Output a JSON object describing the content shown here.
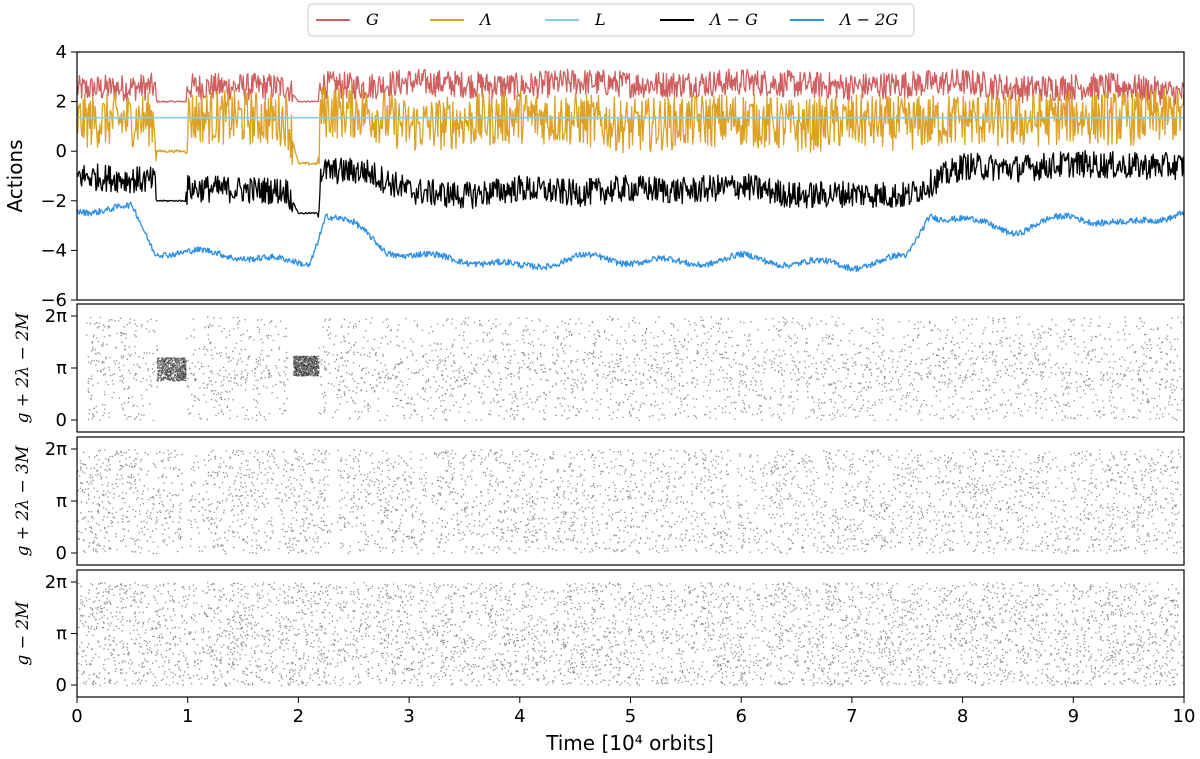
{
  "chart_data": [
    {
      "panel": "actions",
      "type": "line",
      "ylabel": "Actions",
      "xlim": [
        0,
        10
      ],
      "ylim": [
        -6,
        4
      ],
      "yticks": [
        "4",
        "2",
        "0",
        "−2",
        "−4",
        "−6"
      ],
      "legend_position": "top-center",
      "series": [
        {
          "name": "G",
          "color": "#d06060",
          "x": [
            0,
            0.7,
            0.72,
            0.98,
            1.0,
            1.9,
            2.0,
            2.18,
            2.2,
            2.6,
            3.0,
            3.5,
            4.0,
            4.5,
            5.0,
            5.5,
            6.0,
            6.5,
            7.0,
            7.5,
            8.0,
            8.5,
            9.0,
            9.5,
            10.0
          ],
          "y": [
            2.5,
            2.6,
            2.0,
            2.0,
            2.6,
            2.6,
            2.0,
            2.0,
            2.7,
            2.6,
            2.8,
            2.7,
            2.6,
            2.8,
            2.7,
            2.7,
            2.8,
            2.7,
            2.6,
            2.7,
            2.8,
            2.5,
            2.6,
            2.6,
            2.3
          ]
        },
        {
          "name": "Λ",
          "color": "#dda126",
          "x": [
            0,
            0.7,
            0.72,
            0.98,
            1.0,
            1.9,
            2.0,
            2.18,
            2.2,
            2.6,
            3.0,
            3.5,
            4.0,
            4.5,
            5.0,
            5.5,
            6.0,
            6.5,
            7.0,
            7.5,
            8.0,
            8.5,
            9.0,
            9.5,
            10.0
          ],
          "y": [
            1.2,
            1.3,
            0.0,
            0.0,
            1.4,
            1.3,
            -0.5,
            -0.5,
            1.6,
            1.6,
            1.0,
            1.2,
            1.4,
            1.3,
            1.0,
            1.2,
            1.3,
            1.0,
            1.2,
            1.1,
            1.3,
            1.2,
            1.4,
            1.3,
            1.5
          ]
        },
        {
          "name": "L",
          "color": "#87cee8",
          "x": [
            0,
            10
          ],
          "y": [
            1.35,
            1.35
          ]
        },
        {
          "name": "Λ − G",
          "color": "#000000",
          "x": [
            0,
            0.7,
            0.72,
            0.98,
            1.0,
            1.9,
            2.0,
            2.18,
            2.2,
            2.6,
            3.0,
            3.5,
            4.0,
            4.5,
            5.0,
            5.5,
            6.0,
            6.5,
            7.0,
            7.5,
            8.0,
            8.5,
            9.0,
            9.5,
            10.0
          ],
          "y": [
            -1.0,
            -1.2,
            -2.0,
            -2.0,
            -1.5,
            -1.6,
            -2.5,
            -2.5,
            -0.8,
            -0.8,
            -1.6,
            -1.8,
            -1.5,
            -1.7,
            -1.5,
            -1.6,
            -1.4,
            -1.8,
            -1.7,
            -1.8,
            -0.6,
            -0.7,
            -0.5,
            -0.6,
            -0.6
          ]
        },
        {
          "name": "Λ − 2G",
          "color": "#2c8fe8",
          "x": [
            0,
            0.3,
            0.5,
            0.7,
            1.0,
            1.5,
            1.9,
            2.1,
            2.25,
            2.5,
            2.8,
            3.2,
            3.6,
            4.0,
            4.5,
            5.0,
            5.5,
            6.0,
            6.5,
            7.0,
            7.5,
            7.7,
            8.0,
            8.5,
            9.0,
            9.5,
            10.0
          ],
          "y": [
            -2.3,
            -2.4,
            -2.3,
            -4.0,
            -4.1,
            -4.2,
            -4.5,
            -4.5,
            -2.5,
            -3.0,
            -4.0,
            -4.3,
            -4.4,
            -4.7,
            -4.3,
            -4.4,
            -4.5,
            -4.3,
            -4.5,
            -4.6,
            -4.3,
            -2.5,
            -2.8,
            -3.2,
            -2.6,
            -3.0,
            -2.4
          ]
        }
      ]
    },
    {
      "panel": "resonance-1",
      "type": "scatter",
      "ylabel": "g + 2λ − 2M",
      "xlim": [
        0,
        10
      ],
      "ylim": [
        0,
        6.2832
      ],
      "yticks": [
        "2π",
        "π",
        "0"
      ],
      "description_free": true,
      "fill_pattern": "uniform noise over [0, 2π] with librating clumps near π",
      "librating_intervals": [
        [
          0.72,
          0.98,
          3.1,
          1.4
        ],
        [
          1.95,
          2.18,
          3.3,
          1.2
        ]
      ],
      "gaps": [
        [
          0.0,
          0.08
        ],
        [
          0.72,
          0.78
        ],
        [
          1.9,
          1.95
        ]
      ]
    },
    {
      "panel": "resonance-2",
      "type": "scatter",
      "ylabel": "g + 2λ − 3M",
      "xlim": [
        0,
        10
      ],
      "ylim": [
        0,
        6.2832
      ],
      "yticks": [
        "2π",
        "π",
        "0"
      ],
      "gaps": [
        [
          0.95,
          1.0
        ],
        [
          2.3,
          2.35
        ],
        [
          3.15,
          3.2
        ],
        [
          5.9,
          5.95
        ]
      ]
    },
    {
      "panel": "resonance-3",
      "type": "scatter",
      "ylabel": "g − 2M",
      "xlim": [
        0,
        10
      ],
      "ylim": [
        0,
        6.2832
      ],
      "yticks": [
        "2π",
        "π",
        "0"
      ],
      "gaps": []
    }
  ],
  "xaxis": {
    "label": "Time [10⁴ orbits]",
    "ticks": [
      "0",
      "1",
      "2",
      "3",
      "4",
      "5",
      "6",
      "7",
      "8",
      "9",
      "10"
    ]
  }
}
